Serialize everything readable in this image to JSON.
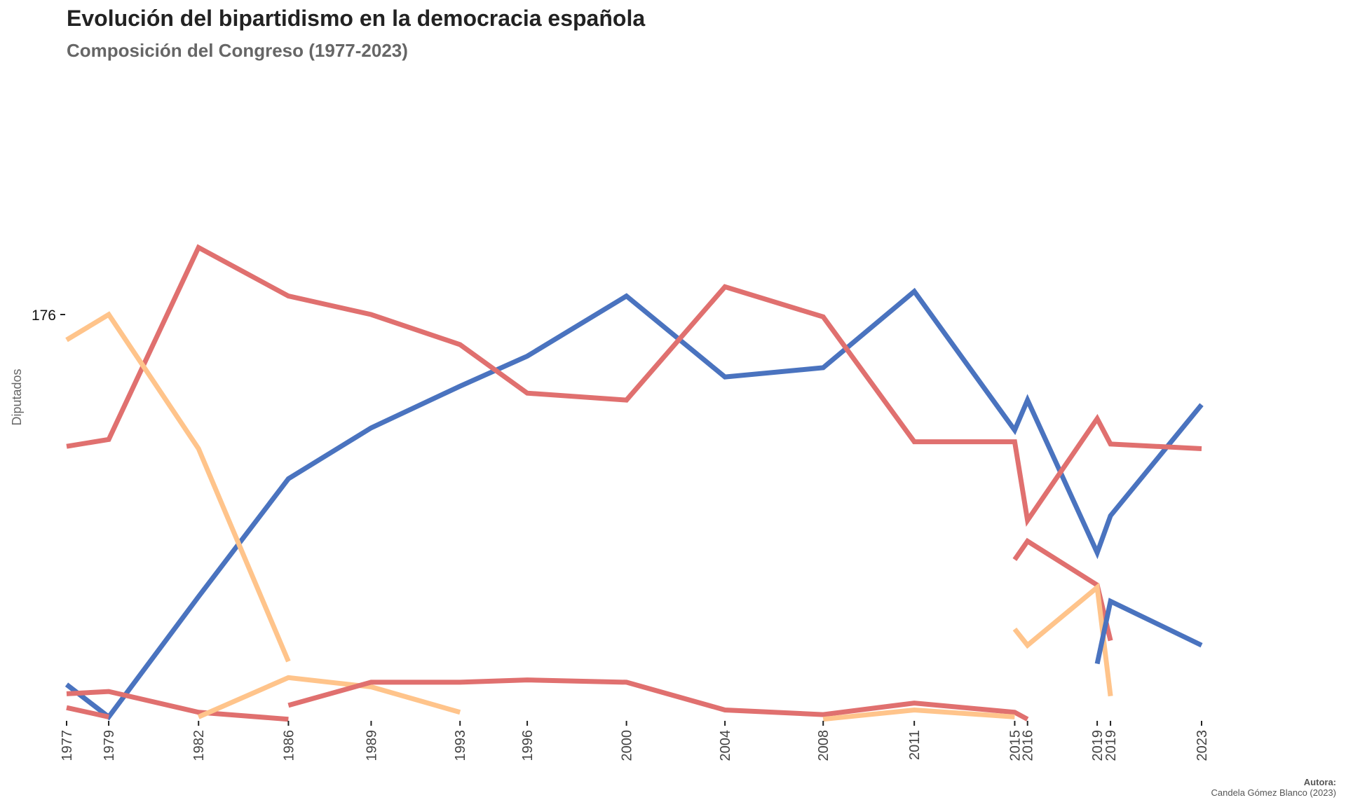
{
  "chart_data": {
    "type": "line",
    "title": "Evolución del bipartidismo en la democracia española",
    "subtitle": "Composición del Congreso (1977-2023)",
    "xlabel": "",
    "ylabel": "Diputados",
    "y_ticks": [
      176
    ],
    "y_tick_labels": [
      "176"
    ],
    "ylim": [
      0,
      210
    ],
    "grid": false,
    "legend": "none",
    "x_range": [
      1977.46,
      2023.56
    ],
    "x_ticks": [
      {
        "label": "1977",
        "x": 1977.46
      },
      {
        "label": "1979",
        "x": 1979.17
      },
      {
        "label": "1982",
        "x": 1982.82
      },
      {
        "label": "1986",
        "x": 1986.47
      },
      {
        "label": "1989",
        "x": 1989.83
      },
      {
        "label": "1993",
        "x": 1993.44
      },
      {
        "label": "1996",
        "x": 1996.17
      },
      {
        "label": "2000",
        "x": 2000.2
      },
      {
        "label": "2004",
        "x": 2004.2
      },
      {
        "label": "2008",
        "x": 2008.19
      },
      {
        "label": "2011",
        "x": 2011.89
      },
      {
        "label": "2015",
        "x": 2015.97
      },
      {
        "label": "2016",
        "x": 2016.49
      },
      {
        "label": "2019",
        "x": 2019.32
      },
      {
        "label": "2019",
        "x": 2019.86
      },
      {
        "label": "2023",
        "x": 2023.56
      }
    ],
    "series": [
      {
        "name": "blue-main",
        "color": "#4A73BF",
        "x": [
          1977.46,
          1979.17,
          1982.82,
          1986.47,
          1989.83,
          1993.44,
          1996.17,
          2000.2,
          2004.2,
          2008.19,
          2011.89,
          2015.97,
          2016.49,
          2019.32,
          2019.86,
          2023.56
        ],
        "values": [
          16,
          2,
          54,
          105,
          127,
          145,
          158,
          184,
          149,
          153,
          186,
          126,
          139,
          73,
          89,
          137
        ]
      },
      {
        "name": "red-main",
        "color": "#E0706F",
        "x": [
          1977.46,
          1979.17,
          1982.82,
          1986.47,
          1989.83,
          1993.44,
          1996.17,
          2000.2,
          2004.2,
          2008.19,
          2011.89,
          2015.97,
          2016.49,
          2019.32,
          2019.86,
          2023.56
        ],
        "values": [
          119,
          122,
          205,
          184,
          176,
          163,
          142,
          139,
          188,
          175,
          121,
          121,
          87,
          131,
          120,
          118
        ]
      },
      {
        "name": "orange-1",
        "color": "#FFC48B",
        "x": [
          1977.46,
          1979.17,
          1982.82,
          1986.47
        ],
        "values": [
          165,
          176,
          118,
          26
        ]
      },
      {
        "name": "red-2",
        "color": "#E0706F",
        "x": [
          1977.46,
          1979.17,
          1982.82,
          1986.47
        ],
        "values": [
          12,
          13,
          4,
          1
        ]
      },
      {
        "name": "red-3",
        "color": "#E0706F",
        "x": [
          1977.46,
          1979.17
        ],
        "values": [
          6,
          2
        ]
      },
      {
        "name": "orange-2",
        "color": "#FFC48B",
        "x": [
          1982.82,
          1986.47,
          1989.83,
          1993.44
        ],
        "values": [
          2,
          19,
          15,
          4
        ]
      },
      {
        "name": "red-4",
        "color": "#E0706F",
        "x": [
          1986.47,
          1989.83,
          1993.44,
          1996.17,
          2000.2,
          2004.2,
          2008.19,
          2011.89,
          2015.97,
          2016.49
        ],
        "values": [
          7,
          17,
          17,
          18,
          17,
          5,
          3,
          8,
          4,
          1
        ]
      },
      {
        "name": "orange-3",
        "color": "#FFC48B",
        "x": [
          2008.19,
          2011.89,
          2015.97
        ],
        "values": [
          1,
          5,
          2
        ]
      },
      {
        "name": "red-5",
        "color": "#E0706F",
        "x": [
          2015.97,
          2016.49,
          2019.32,
          2019.86
        ],
        "values": [
          70,
          78,
          59,
          35
        ]
      },
      {
        "name": "orange-4",
        "color": "#FFC48B",
        "x": [
          2015.97,
          2016.49,
          2019.32,
          2019.86
        ],
        "values": [
          40,
          33,
          58,
          11
        ]
      },
      {
        "name": "blue-2",
        "color": "#4A73BF",
        "x": [
          2019.32,
          2019.86,
          2023.56
        ],
        "values": [
          25,
          52,
          33
        ]
      }
    ]
  },
  "caption": {
    "title": "Autora:",
    "text": "Candela Gómez Blanco (2023)"
  }
}
